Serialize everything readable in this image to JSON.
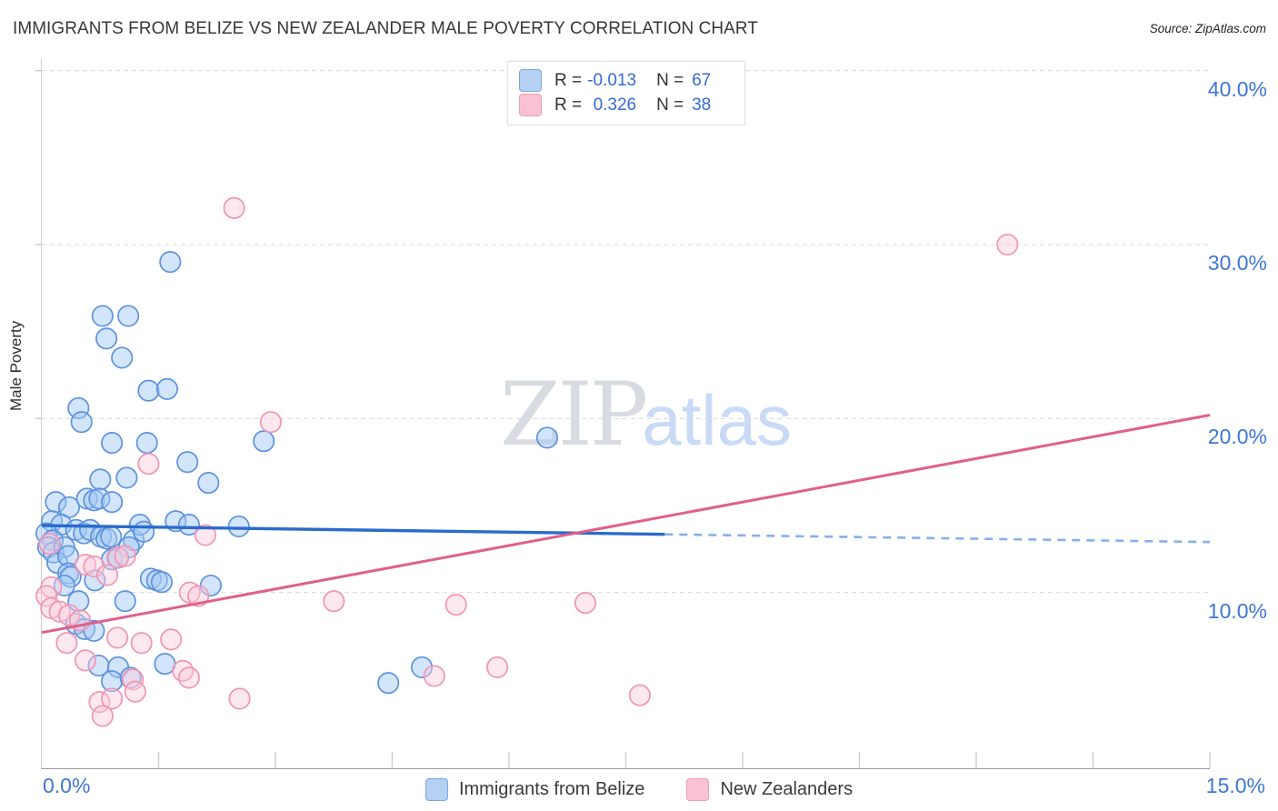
{
  "header": {
    "title": "IMMIGRANTS FROM BELIZE VS NEW ZEALANDER MALE POVERTY CORRELATION CHART",
    "source": "Source: ZipAtlas.com"
  },
  "legend_box": {
    "rows": [
      {
        "series": "belize",
        "r_label": "R =",
        "r_value": "-0.013",
        "n_label": "N =",
        "n_value": "67"
      },
      {
        "series": "nz",
        "r_label": "R =",
        "r_value": "0.326",
        "n_label": "N =",
        "n_value": "38"
      }
    ]
  },
  "watermark": {
    "zip": "ZIP",
    "atlas": "atlas"
  },
  "y_axis": {
    "title": "Male Poverty",
    "tick_labels": [
      "40.0%",
      "30.0%",
      "20.0%",
      "10.0%"
    ],
    "tick_values": [
      40,
      30,
      20,
      10
    ]
  },
  "x_axis": {
    "min_label": "0.0%",
    "max_label": "15.0%",
    "min": 0,
    "max": 15,
    "tick_step": 1.5
  },
  "bottom_legend": [
    {
      "label": "Immigrants from Belize",
      "series": "belize"
    },
    {
      "label": "New Zealanders",
      "series": "nz"
    }
  ],
  "colors": {
    "blue_point_stroke": "#5e92de",
    "blue_point_fill": "rgba(164,200,244,0.48)",
    "pink_point_stroke": "#f195b2",
    "pink_point_fill": "rgba(250,205,220,0.45)",
    "blue_trend": "#2a6bcc",
    "blue_trend_dashed": "#86b0e8",
    "pink_trend": "#e05f8b",
    "gridline": "#d9d9d9",
    "tick": "#cfcfcf",
    "axis_label": "#3d77d6"
  },
  "chart_data": {
    "type": "scatter",
    "xlabel": "",
    "ylabel": "Male Poverty",
    "xlim": [
      0,
      15
    ],
    "ylim": [
      0,
      40.7
    ],
    "grid": "horizontal-dashed",
    "legend_position": "bottom-center",
    "series": [
      {
        "name": "Immigrants from Belize",
        "R": -0.013,
        "N": 67,
        "points": [
          [
            1.65,
            29.0
          ],
          [
            0.78,
            25.9
          ],
          [
            1.11,
            25.9
          ],
          [
            0.83,
            24.6
          ],
          [
            1.03,
            23.5
          ],
          [
            1.37,
            21.6
          ],
          [
            1.61,
            21.7
          ],
          [
            0.47,
            20.6
          ],
          [
            0.51,
            19.8
          ],
          [
            0.9,
            18.6
          ],
          [
            1.35,
            18.6
          ],
          [
            1.87,
            17.5
          ],
          [
            2.14,
            16.3
          ],
          [
            0.75,
            16.5
          ],
          [
            1.09,
            16.6
          ],
          [
            2.85,
            18.7
          ],
          [
            6.49,
            18.9
          ],
          [
            0.18,
            15.2
          ],
          [
            0.35,
            14.9
          ],
          [
            0.58,
            15.4
          ],
          [
            0.67,
            15.3
          ],
          [
            0.74,
            15.4
          ],
          [
            0.9,
            15.2
          ],
          [
            0.13,
            14.1
          ],
          [
            0.25,
            13.9
          ],
          [
            0.06,
            13.4
          ],
          [
            0.14,
            13.0
          ],
          [
            0.08,
            12.6
          ],
          [
            0.15,
            12.3
          ],
          [
            0.29,
            12.6
          ],
          [
            0.2,
            11.7
          ],
          [
            0.44,
            13.6
          ],
          [
            0.54,
            13.4
          ],
          [
            0.62,
            13.6
          ],
          [
            0.76,
            13.2
          ],
          [
            0.83,
            13.1
          ],
          [
            0.89,
            13.2
          ],
          [
            1.18,
            13.0
          ],
          [
            1.12,
            12.6
          ],
          [
            1.26,
            13.9
          ],
          [
            1.31,
            13.5
          ],
          [
            1.72,
            14.1
          ],
          [
            1.89,
            13.9
          ],
          [
            2.53,
            13.8
          ],
          [
            0.34,
            12.1
          ],
          [
            0.9,
            11.9
          ],
          [
            0.98,
            12.0
          ],
          [
            0.34,
            11.1
          ],
          [
            0.37,
            10.9
          ],
          [
            0.29,
            10.4
          ],
          [
            0.68,
            10.7
          ],
          [
            2.17,
            10.4
          ],
          [
            1.4,
            10.8
          ],
          [
            1.48,
            10.7
          ],
          [
            1.54,
            10.6
          ],
          [
            0.47,
            9.5
          ],
          [
            1.07,
            9.5
          ],
          [
            0.44,
            8.2
          ],
          [
            0.55,
            7.9
          ],
          [
            0.67,
            7.8
          ],
          [
            0.73,
            5.8
          ],
          [
            1.58,
            5.9
          ],
          [
            0.98,
            5.7
          ],
          [
            0.9,
            4.9
          ],
          [
            1.14,
            5.1
          ],
          [
            4.88,
            5.7
          ],
          [
            4.45,
            4.8
          ]
        ]
      },
      {
        "name": "New Zealanders",
        "R": 0.326,
        "N": 38,
        "points": [
          [
            2.47,
            32.1
          ],
          [
            12.4,
            30.0
          ],
          [
            2.94,
            19.8
          ],
          [
            1.37,
            17.4
          ],
          [
            2.1,
            13.3
          ],
          [
            0.1,
            12.8
          ],
          [
            0.97,
            12.0
          ],
          [
            1.07,
            12.1
          ],
          [
            0.56,
            11.6
          ],
          [
            0.67,
            11.5
          ],
          [
            0.84,
            11.0
          ],
          [
            0.12,
            10.3
          ],
          [
            0.06,
            9.8
          ],
          [
            1.9,
            10.0
          ],
          [
            2.01,
            9.8
          ],
          [
            3.75,
            9.5
          ],
          [
            5.32,
            9.3
          ],
          [
            6.98,
            9.4
          ],
          [
            0.12,
            9.1
          ],
          [
            0.23,
            8.9
          ],
          [
            0.35,
            8.7
          ],
          [
            0.49,
            8.4
          ],
          [
            0.32,
            7.1
          ],
          [
            0.56,
            6.1
          ],
          [
            0.97,
            7.4
          ],
          [
            1.28,
            7.1
          ],
          [
            1.66,
            7.3
          ],
          [
            1.17,
            5.0
          ],
          [
            1.81,
            5.5
          ],
          [
            1.89,
            5.1
          ],
          [
            1.2,
            4.3
          ],
          [
            0.74,
            3.7
          ],
          [
            0.9,
            3.9
          ],
          [
            0.78,
            2.9
          ],
          [
            2.54,
            3.9
          ],
          [
            5.04,
            5.2
          ],
          [
            5.85,
            5.7
          ],
          [
            7.68,
            4.1
          ]
        ]
      }
    ],
    "trend_lines": [
      {
        "series": "Immigrants from Belize",
        "x_start": 0,
        "y_start": 13.85,
        "x_end": 15,
        "y_end": 12.9,
        "solid_until_x": 8.0
      },
      {
        "series": "New Zealanders",
        "x_start": 0,
        "y_start": 7.7,
        "x_end": 15,
        "y_end": 20.2,
        "solid_until_x": 15
      }
    ]
  }
}
